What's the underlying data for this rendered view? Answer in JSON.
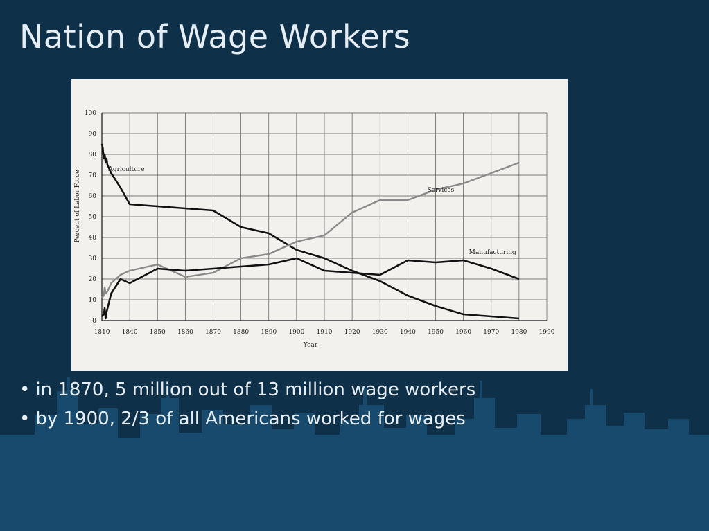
{
  "slide": {
    "title": "Nation of Wage Workers",
    "bullets": [
      "in 1870, 5 million out of 13 million wage workers",
      "by 1900, 2/3 of all Americans worked for wages"
    ],
    "colors": {
      "background": "#0f3049",
      "skyline": "#174a6c",
      "text": "#e6eef5"
    }
  },
  "chart_data": {
    "type": "line",
    "title": "",
    "xlabel": "Year",
    "ylabel": "Percent of Labor Force",
    "xlim": [
      1810,
      1990
    ],
    "ylim": [
      0,
      100
    ],
    "x_ticks": [
      "1810",
      "1840",
      "1850",
      "1860",
      "1870",
      "1880",
      "1890",
      "1900",
      "1910",
      "1920",
      "1930",
      "1940",
      "1950",
      "1960",
      "1970",
      "1980",
      "1990"
    ],
    "y_ticks": [
      "100",
      "90",
      "80",
      "70",
      "60",
      "50",
      "40",
      "30",
      "20",
      "10",
      "0"
    ],
    "grid": true,
    "series": [
      {
        "name": "Agriculture",
        "color": "#111111",
        "points": [
          [
            1810,
            85
          ],
          [
            1811,
            83
          ],
          [
            1812,
            78
          ],
          [
            1813,
            80
          ],
          [
            1814,
            76
          ],
          [
            1815,
            78
          ],
          [
            1816,
            75
          ],
          [
            1820,
            71
          ],
          [
            1830,
            64
          ],
          [
            1840,
            56
          ],
          [
            1850,
            55
          ],
          [
            1860,
            54
          ],
          [
            1870,
            53
          ],
          [
            1880,
            45
          ],
          [
            1890,
            42
          ],
          [
            1900,
            34
          ],
          [
            1910,
            30
          ],
          [
            1920,
            24
          ],
          [
            1930,
            19
          ],
          [
            1940,
            12
          ],
          [
            1950,
            7
          ],
          [
            1960,
            3
          ],
          [
            1970,
            2
          ],
          [
            1980,
            1
          ]
        ]
      },
      {
        "name": "Services",
        "color": "#8a8a8a",
        "points": [
          [
            1810,
            11
          ],
          [
            1812,
            12
          ],
          [
            1813,
            16
          ],
          [
            1814,
            13
          ],
          [
            1816,
            14
          ],
          [
            1820,
            18
          ],
          [
            1830,
            22
          ],
          [
            1840,
            24
          ],
          [
            1850,
            27
          ],
          [
            1860,
            21
          ],
          [
            1870,
            23
          ],
          [
            1880,
            30
          ],
          [
            1890,
            32
          ],
          [
            1900,
            38
          ],
          [
            1910,
            41
          ],
          [
            1920,
            52
          ],
          [
            1930,
            58
          ],
          [
            1940,
            58
          ],
          [
            1950,
            63
          ],
          [
            1960,
            66
          ],
          [
            1970,
            71
          ],
          [
            1980,
            76
          ]
        ]
      },
      {
        "name": "Manufacturing",
        "color": "#111111",
        "points": [
          [
            1810,
            2
          ],
          [
            1812,
            3
          ],
          [
            1813,
            6
          ],
          [
            1814,
            1
          ],
          [
            1815,
            4
          ],
          [
            1820,
            13
          ],
          [
            1830,
            20
          ],
          [
            1840,
            18
          ],
          [
            1850,
            25
          ],
          [
            1860,
            24
          ],
          [
            1870,
            25
          ],
          [
            1880,
            26
          ],
          [
            1890,
            27
          ],
          [
            1900,
            30
          ],
          [
            1910,
            24
          ],
          [
            1920,
            23
          ],
          [
            1930,
            22
          ],
          [
            1940,
            29
          ],
          [
            1950,
            28
          ],
          [
            1960,
            29
          ],
          [
            1970,
            25
          ],
          [
            1980,
            20
          ]
        ]
      }
    ],
    "annotations": [
      "Agriculture",
      "Services",
      "Manufacturing"
    ]
  }
}
